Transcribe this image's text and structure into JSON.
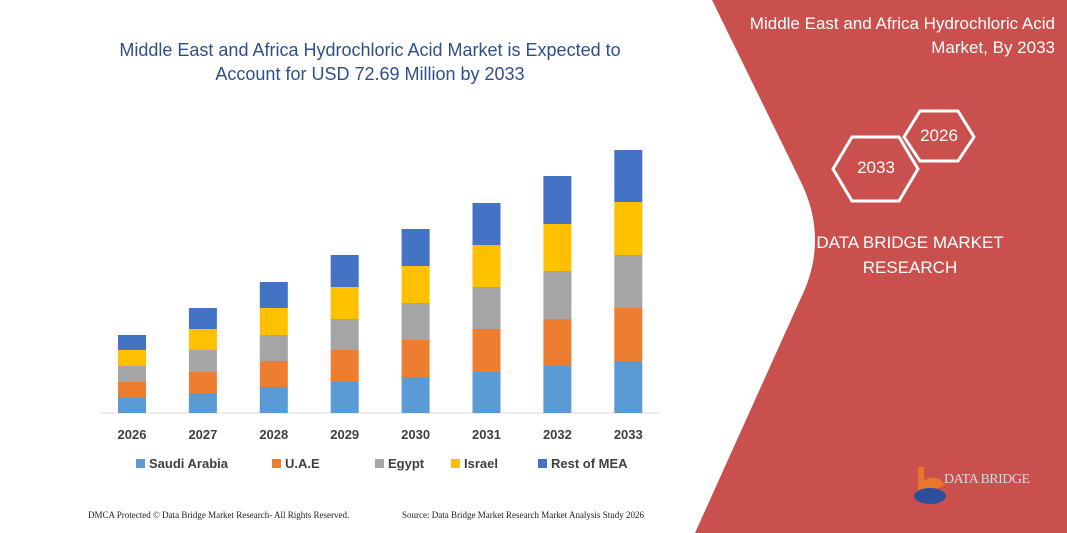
{
  "header": {
    "title": "Middle East and Africa Hydrochloric Acid Market is Expected to Account for USD 72.69 Million by 2033"
  },
  "side_panel": {
    "title": "Middle East and Africa Hydrochloric Acid Market, By 2033",
    "hex_years": [
      "2033",
      "2026"
    ],
    "brand": "DATA BRIDGE MARKET RESEARCH",
    "logo_text": "DATA BRIDGE",
    "color": "#C9504C"
  },
  "footer": {
    "left": "DMCA Protected © Data Bridge Market Research- All Rights Reserved.",
    "right": "Source: Data Bridge Market Research Market Analysis Study 2026"
  },
  "chart_data": {
    "type": "bar",
    "stacked": true,
    "title": "",
    "xlabel": "",
    "ylabel": "",
    "categories": [
      "2026",
      "2027",
      "2028",
      "2029",
      "2030",
      "2031",
      "2032",
      "2033"
    ],
    "series": [
      {
        "name": "Saudi Arabia",
        "color": "#5B9BD5",
        "values": [
          15,
          20,
          26,
          31,
          36,
          41,
          47,
          52
        ]
      },
      {
        "name": "U.A.E",
        "color": "#ED7D31",
        "values": [
          16,
          21,
          26,
          32,
          37,
          43,
          47,
          53
        ]
      },
      {
        "name": "Egypt",
        "color": "#A5A5A5",
        "values": [
          16,
          22,
          26,
          31,
          37,
          42,
          48,
          53
        ]
      },
      {
        "name": "Israel",
        "color": "#FFC000",
        "values": [
          16,
          21,
          27,
          32,
          37,
          42,
          47,
          53
        ]
      },
      {
        "name": "Rest of MEA",
        "color": "#4472C4",
        "values": [
          15,
          21,
          26,
          32,
          37,
          42,
          48,
          52
        ]
      }
    ],
    "ylim": [
      0,
      263
    ],
    "grid": false,
    "axis_values_shown": false,
    "legend": "bottom"
  }
}
